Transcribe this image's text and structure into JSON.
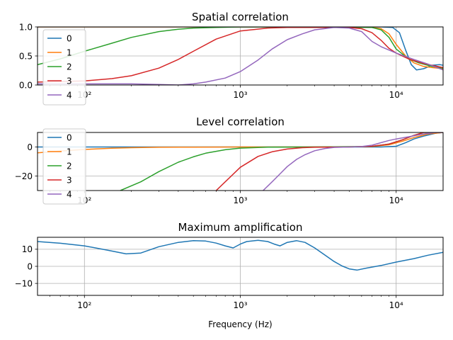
{
  "figure": {
    "xlabel": "Frequency (Hz)",
    "background": "#ffffff"
  },
  "chart_data": [
    {
      "type": "line",
      "title": "Spatial correlation",
      "xlabel": "",
      "ylabel": "",
      "xscale": "log",
      "xlim": [
        50,
        20000
      ],
      "ylim": [
        0,
        1
      ],
      "yticks": [
        0.0,
        0.5,
        1.0
      ],
      "ytick_labels": [
        "0.0",
        "0.5",
        "1.0"
      ],
      "xticks": [
        100,
        1000,
        10000
      ],
      "xtick_labels": [
        "10²",
        "10³",
        "10⁴"
      ],
      "grid": true,
      "legend": {
        "position": "upper-left",
        "entries": [
          "0",
          "1",
          "2",
          "3",
          "4"
        ]
      },
      "series": [
        {
          "name": "0",
          "color": "#1f77b4",
          "x": [
            50,
            5000,
            8000,
            9500,
            10500,
            11500,
            12500,
            13500,
            15000,
            17000,
            19000,
            20000
          ],
          "y": [
            1.0,
            1.0,
            1.0,
            0.99,
            0.9,
            0.6,
            0.35,
            0.26,
            0.28,
            0.34,
            0.35,
            0.34
          ]
        },
        {
          "name": "1",
          "color": "#ff7f0e",
          "x": [
            50,
            5000,
            7000,
            8000,
            9000,
            10000,
            11500,
            13000,
            15000,
            17000,
            20000
          ],
          "y": [
            1.0,
            1.0,
            0.99,
            0.97,
            0.88,
            0.7,
            0.5,
            0.38,
            0.32,
            0.3,
            0.28
          ]
        },
        {
          "name": "2",
          "color": "#2ca02c",
          "x": [
            50,
            70,
            100,
            150,
            200,
            300,
            400,
            500,
            700,
            1000,
            3000,
            7000,
            8000,
            9000,
            10000,
            12000,
            14000,
            17000,
            20000
          ],
          "y": [
            0.35,
            0.45,
            0.58,
            0.72,
            0.82,
            0.92,
            0.96,
            0.98,
            0.99,
            1.0,
            1.0,
            0.99,
            0.95,
            0.82,
            0.62,
            0.45,
            0.38,
            0.32,
            0.29
          ]
        },
        {
          "name": "3",
          "color": "#d62728",
          "x": [
            50,
            100,
            150,
            200,
            300,
            400,
            500,
            700,
            1000,
            1500,
            2000,
            5000,
            6000,
            7000,
            8000,
            9000,
            10000,
            12000,
            15000,
            20000
          ],
          "y": [
            0.05,
            0.07,
            0.11,
            0.16,
            0.29,
            0.44,
            0.58,
            0.79,
            0.93,
            0.98,
            0.99,
            0.99,
            0.97,
            0.9,
            0.77,
            0.63,
            0.55,
            0.45,
            0.37,
            0.3
          ]
        },
        {
          "name": "4",
          "color": "#9467bd",
          "x": [
            50,
            100,
            200,
            300,
            400,
            500,
            600,
            800,
            1000,
            1300,
            1600,
            2000,
            2500,
            3000,
            4000,
            5000,
            6000,
            7000,
            8000,
            10000,
            13000,
            16000,
            20000
          ],
          "y": [
            0.02,
            0.02,
            0.02,
            0.01,
            0.0,
            0.02,
            0.05,
            0.12,
            0.23,
            0.43,
            0.62,
            0.78,
            0.88,
            0.95,
            0.99,
            0.98,
            0.92,
            0.75,
            0.66,
            0.55,
            0.44,
            0.36,
            0.26
          ]
        }
      ]
    },
    {
      "type": "line",
      "title": "Level correlation",
      "xlabel": "",
      "ylabel": "",
      "xscale": "log",
      "xlim": [
        50,
        20000
      ],
      "ylim": [
        -30,
        10
      ],
      "yticks": [
        -20,
        0
      ],
      "ytick_labels": [
        "−20",
        "0"
      ],
      "xticks": [
        100,
        1000,
        10000
      ],
      "xtick_labels": [
        "10²",
        "10³",
        "10⁴"
      ],
      "grid": true,
      "legend": {
        "position": "upper-left",
        "entries": [
          "0",
          "1",
          "2",
          "3",
          "4"
        ]
      },
      "series": [
        {
          "name": "0",
          "color": "#1f77b4",
          "x": [
            50,
            8000,
            10000,
            11500,
            13000,
            15000,
            18000,
            20000
          ],
          "y": [
            0.0,
            0.0,
            0.5,
            3.0,
            5.5,
            7.5,
            9.5,
            10.0
          ]
        },
        {
          "name": "1",
          "color": "#ff7f0e",
          "x": [
            50,
            70,
            100,
            150,
            200,
            300,
            500,
            1000,
            3000,
            7000,
            9000,
            11000,
            13000,
            16000,
            20000
          ],
          "y": [
            -4.0,
            -2.8,
            -1.7,
            -0.9,
            -0.5,
            -0.2,
            -0.1,
            0.0,
            0.0,
            0.3,
            1.5,
            4.0,
            6.5,
            9.0,
            10.0
          ]
        },
        {
          "name": "2",
          "color": "#2ca02c",
          "x": [
            170,
            230,
            300,
            400,
            500,
            600,
            800,
            1000,
            1500,
            3000,
            7000,
            9000,
            11000,
            13000,
            15000,
            20000
          ],
          "y": [
            -30.0,
            -24.0,
            -17.0,
            -10.5,
            -6.8,
            -4.3,
            -1.9,
            -0.8,
            -0.1,
            0.0,
            0.4,
            2.0,
            5.0,
            8.0,
            10.0,
            10.0
          ]
        },
        {
          "name": "3",
          "color": "#d62728",
          "x": [
            700,
            800,
            1000,
            1300,
            1600,
            2000,
            2500,
            3000,
            5000,
            7000,
            9000,
            11000,
            13000,
            15000,
            20000
          ],
          "y": [
            -30.0,
            -24.0,
            -14.0,
            -6.5,
            -3.3,
            -1.4,
            -0.5,
            -0.2,
            0.0,
            0.5,
            2.0,
            5.0,
            8.0,
            10.0,
            10.0
          ]
        },
        {
          "name": "4",
          "color": "#9467bd",
          "x": [
            1400,
            1600,
            1800,
            2000,
            2300,
            2600,
            3000,
            3500,
            4000,
            5000,
            6000,
            7000,
            8000,
            9000,
            10000,
            12000,
            15000,
            18000,
            20000
          ],
          "y": [
            -30.0,
            -24.0,
            -18.5,
            -13.5,
            -8.5,
            -5.3,
            -2.6,
            -1.0,
            -0.3,
            0.0,
            0.3,
            1.2,
            3.0,
            4.5,
            5.5,
            7.0,
            9.0,
            10.0,
            10.0
          ]
        }
      ]
    },
    {
      "type": "line",
      "title": "Maximum amplification",
      "xlabel": "Frequency (Hz)",
      "ylabel": "",
      "xscale": "log",
      "xlim": [
        50,
        20000
      ],
      "ylim": [
        -17,
        17
      ],
      "yticks": [
        -10,
        0,
        10
      ],
      "ytick_labels": [
        "−10",
        "0",
        "10"
      ],
      "xticks": [
        100,
        1000,
        10000
      ],
      "xtick_labels": [
        "10²",
        "10³",
        "10⁴"
      ],
      "grid": true,
      "series": [
        {
          "color": "#1f77b4",
          "x": [
            50,
            70,
            100,
            140,
            185,
            230,
            300,
            400,
            500,
            600,
            700,
            800,
            900,
            1000,
            1100,
            1300,
            1500,
            1650,
            1800,
            2000,
            2300,
            2600,
            3000,
            3500,
            4000,
            4500,
            5000,
            5600,
            6500,
            8000,
            10000,
            13000,
            16000,
            20000
          ],
          "y": [
            14.5,
            13.5,
            12.0,
            9.5,
            7.3,
            7.8,
            11.5,
            14.0,
            15.0,
            14.8,
            13.6,
            12.0,
            10.8,
            13.0,
            14.5,
            15.2,
            14.5,
            13.0,
            12.0,
            14.0,
            15.0,
            14.0,
            10.8,
            6.5,
            2.8,
            0.2,
            -1.5,
            -2.2,
            -1.0,
            0.5,
            2.5,
            4.5,
            6.5,
            8.2
          ]
        }
      ]
    }
  ]
}
